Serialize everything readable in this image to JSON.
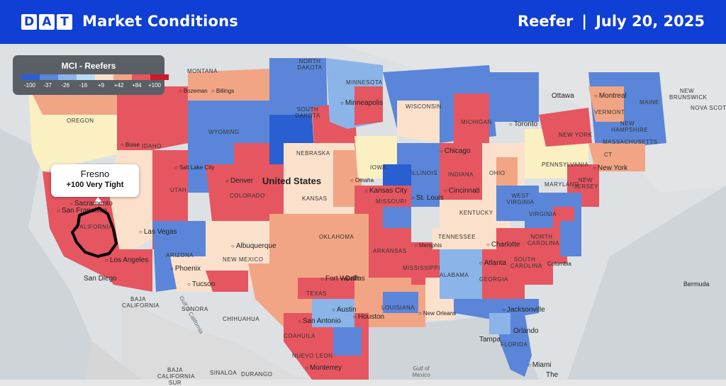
{
  "header": {
    "logo_letters": [
      "D",
      "A",
      "T"
    ],
    "title": "Market Conditions",
    "equipment": "Reefer",
    "separator": "|",
    "date": "July 20, 2025",
    "brand_color": "#0f3fd4"
  },
  "legend": {
    "title": "MCI - Reefers",
    "ticks": [
      "-100",
      "-37",
      "-26",
      "-16",
      "+9",
      "+42",
      "+84",
      "+100"
    ],
    "colors": [
      "#2a5fd1",
      "#5b85d8",
      "#8bb4e8",
      "#b9dcf2",
      "#fbe1cc",
      "#f2a584",
      "#e55660",
      "#c81c2a"
    ]
  },
  "callout": {
    "city": "Fresno",
    "value": "+100 Very Tight"
  },
  "map": {
    "country_label": "United States",
    "states": [
      "MONTANA",
      "NORTH DAKOTA",
      "MINNESOTA",
      "OREGON",
      "IDAHO",
      "SOUTH DAKOTA",
      "WYOMING",
      "WISCONSIN",
      "MICHIGAN",
      "NEBRASKA",
      "IOWA",
      "UTAH",
      "COLORADO",
      "KANSAS",
      "ILLINOIS",
      "INDIANA",
      "OHIO",
      "PENNSYLVANIA",
      "MISSOURI",
      "KENTUCKY",
      "WEST VIRGINIA",
      "VIRGINIA",
      "MARYLAND",
      "NEW YORK",
      "NEW JERSEY",
      "MASSACHUSETTS",
      "VERMONT",
      "NEW HAMPSHIRE",
      "MAINE",
      "CT",
      "NEW BRUNSWICK",
      "NOVA SCOTIA",
      "CALIFORNIA",
      "ARIZONA",
      "NEW MEXICO",
      "OKLAHOMA",
      "TEXAS",
      "ARKANSAS",
      "TENNESSEE",
      "NORTH CAROLINA",
      "SOUTH CAROLINA",
      "GEORGIA",
      "ALABAMA",
      "MISSISSIPPI",
      "LOUISIANA",
      "FLORIDA",
      "SONORA",
      "CHIHUAHUA",
      "COAHUILA",
      "NUEVO LEON",
      "BAJA CALIFORNIA",
      "BAJA CALIFORNIA SUR",
      "SINALOA",
      "DURANGO"
    ],
    "cities": [
      "Bozeman",
      "Billings",
      "Boise",
      "Salt Lake City",
      "Denver",
      "Minneapolis",
      "Omaha",
      "Chicago",
      "Kansas City",
      "St. Louis",
      "Cincinnati",
      "Toronto",
      "Ottawa",
      "Montreal",
      "New York",
      "Sacramento",
      "San Francisco",
      "Las Vegas",
      "Los Angeles",
      "San Diego",
      "Phoenix",
      "Tucson",
      "Albuquerque",
      "Fort Worth",
      "Dallas",
      "Austin",
      "San Antonio",
      "Houston",
      "Memphis",
      "Atlanta",
      "Charlotte",
      "Jacksonville",
      "Orlando",
      "Tampa",
      "Miami",
      "New Orleans",
      "Monterrey",
      "Columbia",
      "Bermuda"
    ],
    "water_labels": [
      "Gulf of California",
      "Gulf of Mexico",
      "The"
    ]
  }
}
